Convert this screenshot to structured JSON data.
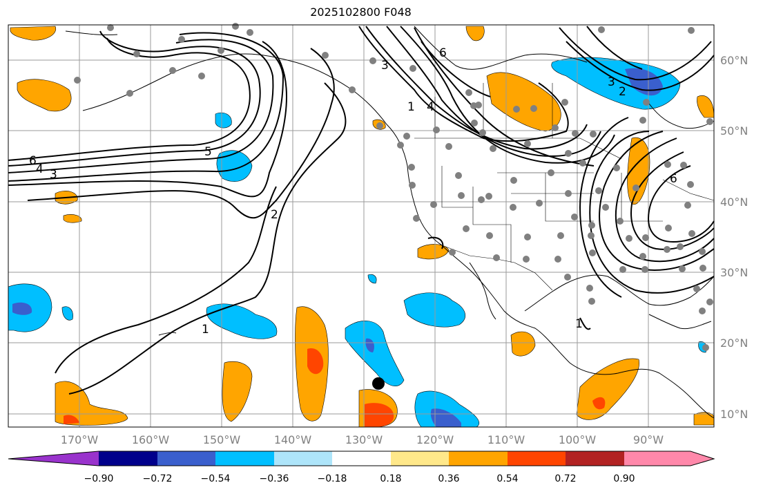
{
  "title": "2025102800 F048",
  "lat_labels": [
    "60°N",
    "50°N",
    "40°N",
    "30°N",
    "20°N",
    "10°N"
  ],
  "lon_labels": [
    "170°W",
    "160°W",
    "150°W",
    "140°W",
    "130°W",
    "120°W",
    "110°W",
    "100°W",
    "90°W"
  ],
  "contour_labels": [
    "6",
    "4",
    "3",
    "5",
    "2",
    "1",
    "3",
    "6",
    "3",
    "2",
    "1",
    "1",
    "4",
    "6"
  ],
  "colorbar": {
    "tick_labels": [
      "−0.90",
      "−0.72",
      "−0.54",
      "−0.36",
      "−0.18",
      "0.18",
      "0.36",
      "0.54",
      "0.72",
      "0.90"
    ],
    "colors": [
      "#9933cc",
      "#00008b",
      "#3a5fcd",
      "#00bfff",
      "#aee5fa",
      "#ffffff",
      "#ffe88a",
      "#ffa500",
      "#ff4500",
      "#b22222",
      "#ff88aa"
    ]
  }
}
